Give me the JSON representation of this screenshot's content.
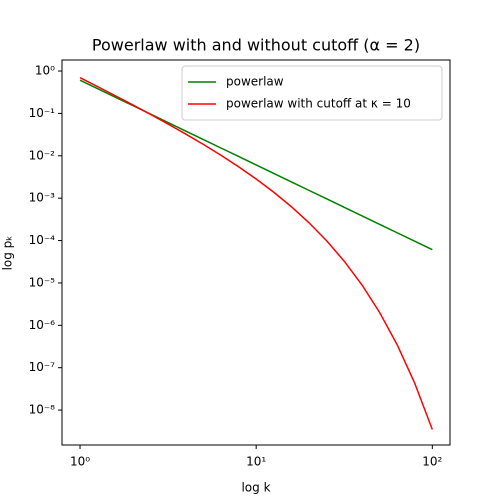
{
  "chart_data": {
    "type": "line",
    "title": "Powerlaw with and without cutoff (α = 2)",
    "xlabel": "log k",
    "ylabel": "log pₖ",
    "x": [
      1,
      1.259,
      1.585,
      1.995,
      2.512,
      3.162,
      3.981,
      5.012,
      6.31,
      7.943,
      10,
      12.59,
      15.85,
      19.95,
      25.12,
      31.62,
      39.81,
      50.12,
      63.1,
      79.43,
      100
    ],
    "series": [
      {
        "name": "powerlaw",
        "color": "#008000",
        "values": [
          0.608,
          0.3836,
          0.242,
          0.1527,
          0.09636,
          0.0608,
          0.03836,
          0.0242,
          0.01527,
          0.009636,
          0.00608,
          0.003836,
          0.00242,
          0.001527,
          0.0009636,
          0.000608,
          0.0003836,
          0.000242,
          0.0001527,
          9.636e-05,
          6.08e-05
        ]
      },
      {
        "name": "powerlaw with cutoff at κ = 10",
        "color": "#ff0000",
        "values": [
          0.696,
          0.428,
          0.2613,
          0.1583,
          0.0948,
          0.05606,
          0.03259,
          0.01855,
          0.01028,
          0.00551,
          0.00283,
          0.001378,
          0.0006277,
          0.0002628,
          9.89e-05,
          3.255e-05,
          9.06e-06,
          2.037e-06,
          3.51e-07,
          4.33e-08,
          3.49e-09
        ]
      }
    ],
    "xscale": "log",
    "yscale": "log",
    "xlim": [
      0.79,
      126
    ],
    "ylim": [
      1.5e-09,
      1.82
    ],
    "xticks": [
      {
        "value": 1,
        "label": "10⁰"
      },
      {
        "value": 10,
        "label": "10¹"
      },
      {
        "value": 100,
        "label": "10²"
      }
    ],
    "yticks": [
      {
        "value": 1e-08,
        "label": "10⁻⁸"
      },
      {
        "value": 1e-07,
        "label": "10⁻⁷"
      },
      {
        "value": 1e-06,
        "label": "10⁻⁶"
      },
      {
        "value": 1e-05,
        "label": "10⁻⁵"
      },
      {
        "value": 0.0001,
        "label": "10⁻⁴"
      },
      {
        "value": 0.001,
        "label": "10⁻³"
      },
      {
        "value": 0.01,
        "label": "10⁻²"
      },
      {
        "value": 0.1,
        "label": "10⁻¹"
      },
      {
        "value": 1,
        "label": "10⁰"
      }
    ],
    "grid": false,
    "legend": "upper right"
  }
}
